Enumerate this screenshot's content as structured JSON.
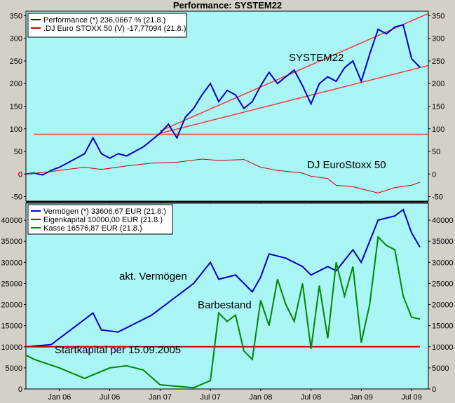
{
  "chart_data": [
    {
      "type": "line",
      "title": "Performance: SYSTEM22",
      "panel": "top",
      "ylim": [
        -60,
        360
      ],
      "y_ticks": [
        -50,
        0,
        50,
        100,
        150,
        200,
        250,
        300,
        350
      ],
      "x_ticks": [
        "Jan 06",
        "Jul 06",
        "Jan 07",
        "Jul 07",
        "Jan 08",
        "Jul 08",
        "Jan 09",
        "Jul 09"
      ],
      "x_tick_dates": [
        "2006-01",
        "2006-07",
        "2007-01",
        "2007-07",
        "2008-01",
        "2008-07",
        "2009-01",
        "2009-07"
      ],
      "xlim": [
        "2005-09",
        "2009-09"
      ],
      "annotations": [
        "SYSTEM22",
        "DJ EuroStoxx 50"
      ],
      "grid": false,
      "legend_position": "top-left",
      "series": [
        {
          "name": "Performance (*) 236,0667 % (21.8.)",
          "color": "#0000cc",
          "points": [
            [
              "2005-09",
              0
            ],
            [
              "2005-10",
              2
            ],
            [
              "2005-11",
              -2
            ],
            [
              "2005-12",
              8
            ],
            [
              "2006-01",
              15
            ],
            [
              "2006-02",
              25
            ],
            [
              "2006-03",
              35
            ],
            [
              "2006-04",
              45
            ],
            [
              "2006-05",
              80
            ],
            [
              "2006-06",
              45
            ],
            [
              "2006-07",
              35
            ],
            [
              "2006-08",
              45
            ],
            [
              "2006-09",
              40
            ],
            [
              "2006-10",
              50
            ],
            [
              "2006-11",
              60
            ],
            [
              "2006-12",
              75
            ],
            [
              "2007-01",
              90
            ],
            [
              "2007-02",
              110
            ],
            [
              "2007-03",
              80
            ],
            [
              "2007-04",
              125
            ],
            [
              "2007-05",
              145
            ],
            [
              "2007-06",
              175
            ],
            [
              "2007-07",
              200
            ],
            [
              "2007-08",
              160
            ],
            [
              "2007-09",
              185
            ],
            [
              "2007-10",
              175
            ],
            [
              "2007-11",
              145
            ],
            [
              "2007-12",
              160
            ],
            [
              "2008-01",
              195
            ],
            [
              "2008-02",
              225
            ],
            [
              "2008-03",
              200
            ],
            [
              "2008-04",
              215
            ],
            [
              "2008-05",
              230
            ],
            [
              "2008-06",
              195
            ],
            [
              "2008-07",
              155
            ],
            [
              "2008-08",
              200
            ],
            [
              "2008-09",
              215
            ],
            [
              "2008-10",
              205
            ],
            [
              "2008-11",
              235
            ],
            [
              "2008-12",
              250
            ],
            [
              "2009-01",
              205
            ],
            [
              "2009-02",
              265
            ],
            [
              "2009-03",
              320
            ],
            [
              "2009-04",
              310
            ],
            [
              "2009-05",
              325
            ],
            [
              "2009-06",
              330
            ],
            [
              "2009-07",
              255
            ],
            [
              "2009-08",
              236
            ]
          ]
        },
        {
          "name": ".DJ Euro STOXX 50 (V) -17,77094 (21.8.)",
          "color": "#cc0000",
          "points": [
            [
              "2005-09",
              0
            ],
            [
              "2005-11",
              3
            ],
            [
              "2006-01",
              8
            ],
            [
              "2006-04",
              15
            ],
            [
              "2006-06",
              10
            ],
            [
              "2006-09",
              18
            ],
            [
              "2006-12",
              24
            ],
            [
              "2007-03",
              26
            ],
            [
              "2007-06",
              33
            ],
            [
              "2007-08",
              30
            ],
            [
              "2007-11",
              32
            ],
            [
              "2008-01",
              15
            ],
            [
              "2008-03",
              8
            ],
            [
              "2008-06",
              2
            ],
            [
              "2008-07",
              -5
            ],
            [
              "2008-09",
              -10
            ],
            [
              "2008-10",
              -25
            ],
            [
              "2008-12",
              -28
            ],
            [
              "2009-03",
              -42
            ],
            [
              "2009-05",
              -30
            ],
            [
              "2009-07",
              -25
            ],
            [
              "2009-08",
              -18
            ]
          ]
        }
      ],
      "overlay_lines": [
        {
          "color": "#ff3333",
          "from": [
            "2007-01",
            90
          ],
          "to": [
            "2009-09",
            240
          ]
        },
        {
          "color": "#ff3333",
          "from": [
            "2007-01",
            95
          ],
          "to": [
            "2009-09",
            355
          ]
        },
        {
          "color": "#ff3333",
          "from": [
            "2005-10",
            88
          ],
          "to": [
            "2009-09",
            88
          ]
        }
      ]
    },
    {
      "type": "line",
      "panel": "bottom",
      "ylim": [
        0,
        44000
      ],
      "y_ticks": [
        0,
        5000,
        10000,
        15000,
        20000,
        25000,
        30000,
        35000,
        40000
      ],
      "x_ticks": [
        "Jan 06",
        "Jul 06",
        "Jan 07",
        "Jul 07",
        "Jan 08",
        "Jul 08",
        "Jan 09",
        "Jul 09"
      ],
      "annotations": [
        "akt. Vermögen",
        "Barbestand",
        "Startkapital per 15.09.2005"
      ],
      "grid": false,
      "legend_position": "top-left",
      "series": [
        {
          "name": "Vermögen (*) 33606,67 EUR (21.8.)",
          "color": "#0000cc",
          "points": [
            [
              "2005-09",
              10000
            ],
            [
              "2005-12",
              10500
            ],
            [
              "2006-01",
              12000
            ],
            [
              "2006-03",
              15000
            ],
            [
              "2006-05",
              18000
            ],
            [
              "2006-06",
              14000
            ],
            [
              "2006-08",
              13500
            ],
            [
              "2006-10",
              15500
            ],
            [
              "2006-12",
              17500
            ],
            [
              "2007-01",
              19000
            ],
            [
              "2007-03",
              22000
            ],
            [
              "2007-05",
              25000
            ],
            [
              "2007-07",
              30000
            ],
            [
              "2007-08",
              26000
            ],
            [
              "2007-10",
              27000
            ],
            [
              "2007-12",
              23000
            ],
            [
              "2008-01",
              26500
            ],
            [
              "2008-02",
              32000
            ],
            [
              "2008-04",
              31000
            ],
            [
              "2008-06",
              29000
            ],
            [
              "2008-07",
              27000
            ],
            [
              "2008-09",
              29000
            ],
            [
              "2008-10",
              28000
            ],
            [
              "2008-12",
              33000
            ],
            [
              "2009-01",
              30000
            ],
            [
              "2009-02",
              35000
            ],
            [
              "2009-03",
              40000
            ],
            [
              "2009-05",
              41000
            ],
            [
              "2009-06",
              42500
            ],
            [
              "2009-07",
              37000
            ],
            [
              "2009-08",
              33606
            ]
          ]
        },
        {
          "name": "Eigenkapital 10000,00 EUR (21.8.)",
          "color": "#cc0000",
          "points": [
            [
              "2005-09",
              10000
            ],
            [
              "2009-08",
              10000
            ]
          ]
        },
        {
          "name": "Kasse 16576,87 EUR (21.8.)",
          "color": "#008800",
          "points": [
            [
              "2005-09",
              8000
            ],
            [
              "2005-10",
              7000
            ],
            [
              "2006-01",
              5000
            ],
            [
              "2006-04",
              2500
            ],
            [
              "2006-07",
              5000
            ],
            [
              "2006-09",
              5500
            ],
            [
              "2006-11",
              4500
            ],
            [
              "2007-01",
              1000
            ],
            [
              "2007-05",
              300
            ],
            [
              "2007-07",
              2000
            ],
            [
              "2007-08",
              18000
            ],
            [
              "2007-09",
              16000
            ],
            [
              "2007-10",
              17500
            ],
            [
              "2007-11",
              9000
            ],
            [
              "2007-12",
              7000
            ],
            [
              "2008-01",
              21000
            ],
            [
              "2008-02",
              15000
            ],
            [
              "2008-03",
              26000
            ],
            [
              "2008-04",
              20000
            ],
            [
              "2008-05",
              16000
            ],
            [
              "2008-06",
              25000
            ],
            [
              "2008-07",
              9500
            ],
            [
              "2008-08",
              24500
            ],
            [
              "2008-09",
              12000
            ],
            [
              "2008-10",
              30000
            ],
            [
              "2008-11",
              22000
            ],
            [
              "2008-12",
              29000
            ],
            [
              "2009-01",
              11000
            ],
            [
              "2009-02",
              20000
            ],
            [
              "2009-03",
              36000
            ],
            [
              "2009-04",
              34000
            ],
            [
              "2009-05",
              33000
            ],
            [
              "2009-06",
              22000
            ],
            [
              "2009-07",
              17000
            ],
            [
              "2009-08",
              16576
            ]
          ]
        }
      ]
    }
  ]
}
